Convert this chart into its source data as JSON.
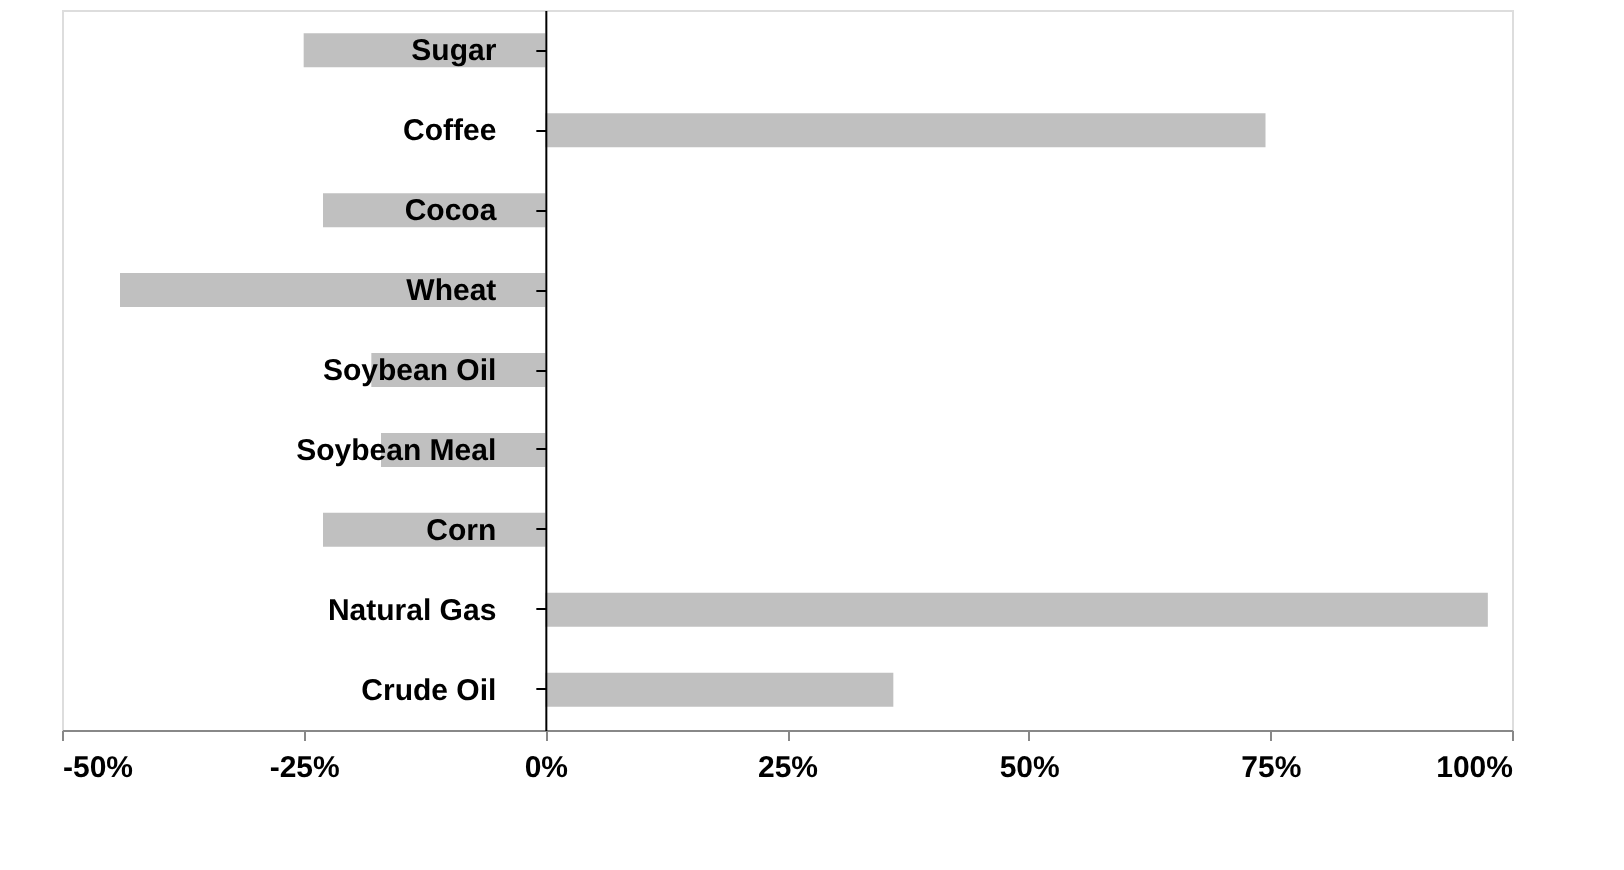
{
  "chart_data": {
    "type": "bar",
    "orientation": "horizontal",
    "categories": [
      "Sugar",
      "Coffee",
      "Cocoa",
      "Wheat",
      "Soybean Oil",
      "Soybean Meal",
      "Corn",
      "Natural Gas",
      "Crude Oil"
    ],
    "values": [
      -25,
      74.5,
      -23,
      -44,
      -18,
      -17,
      -23,
      97.5,
      36
    ],
    "color": "#c0c0c0",
    "xlim": [
      -50,
      100
    ],
    "xticks": [
      {
        "value": -50,
        "label": "-50%"
      },
      {
        "value": -25,
        "label": "-25%"
      },
      {
        "value": 0,
        "label": "0%"
      },
      {
        "value": 25,
        "label": "25%"
      },
      {
        "value": 50,
        "label": "50%"
      },
      {
        "value": 75,
        "label": "75%"
      },
      {
        "value": 100,
        "label": "100%"
      }
    ],
    "grid": false
  }
}
